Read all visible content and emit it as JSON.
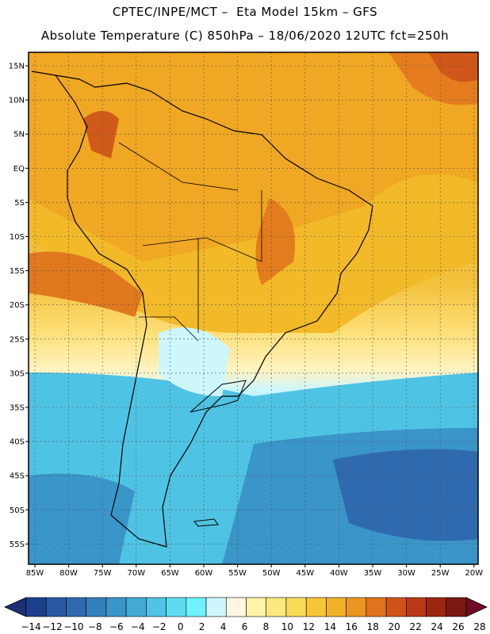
{
  "header": {
    "line1": "CPTEC/INPE/MCT –  Eta Model 15km – GFS",
    "line2": "Absolute Temperature (C) 850hPa – 18/06/2020 12UTC fct=250h"
  },
  "map": {
    "lat_labels": [
      "15N",
      "10N",
      "5N",
      "EQ",
      "5S",
      "10S",
      "15S",
      "20S",
      "25S",
      "30S",
      "35S",
      "40S",
      "45S",
      "50S",
      "55S"
    ],
    "lon_labels": [
      "85W",
      "80W",
      "75W",
      "70W",
      "65W",
      "60W",
      "55W",
      "50W",
      "45W",
      "40W",
      "35W",
      "30W",
      "25W",
      "20W"
    ],
    "colors": {
      "land_outline": "#000000",
      "grid": "#555555"
    }
  },
  "colorbar": {
    "labels": [
      "-14",
      "-12",
      "-10",
      "-8",
      "-6",
      "-4",
      "-2",
      "0",
      "2",
      "4",
      "6",
      "8",
      "10",
      "12",
      "14",
      "16",
      "18",
      "20",
      "22",
      "24",
      "26",
      "28"
    ],
    "colors": [
      "#1c3f8e",
      "#2a58a3",
      "#2f6aae",
      "#3380bb",
      "#3a95c9",
      "#44abd6",
      "#50c4e2",
      "#5ddcef",
      "#6ef2fb",
      "#cdf6fd",
      "#fff7e0",
      "#fff3a8",
      "#fde97b",
      "#fadb59",
      "#f6c63a",
      "#f1b22a",
      "#eb9620",
      "#e0741c",
      "#cf5418",
      "#b93a14",
      "#9c2610",
      "#7a1a10"
    ],
    "under_color": "#1c2f75",
    "over_color": "#700b24"
  }
}
